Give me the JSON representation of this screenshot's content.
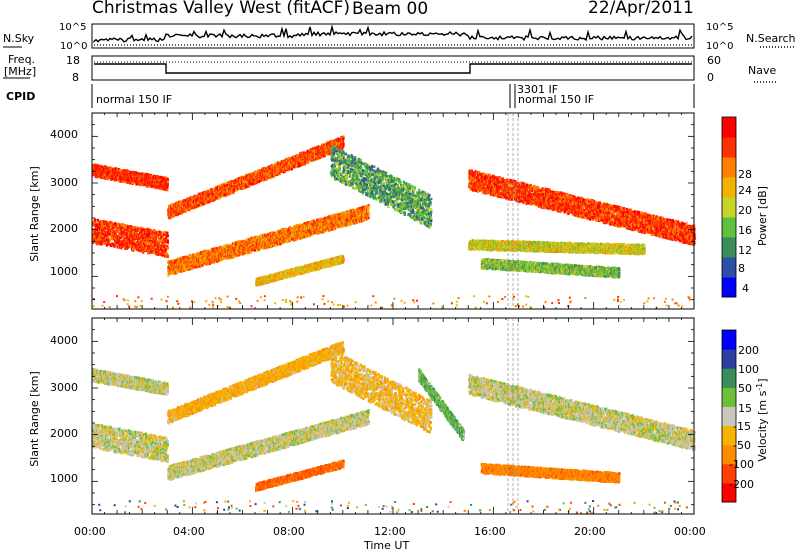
{
  "header": {
    "station": "Christmas Valley West (fitACF)",
    "beam": "Beam 00",
    "date": "22/Apr/2011"
  },
  "top_panels": {
    "nsky_label": "N.Sky",
    "nsearch_label": "N.Search",
    "noise_ticks": [
      "10^5",
      "10^0"
    ],
    "freq_label_1": "Freq.",
    "freq_label_2": "[MHz]",
    "freq_ticks": [
      "18",
      "8"
    ],
    "nave_label": "Nave",
    "nave_ticks": [
      "60",
      "0"
    ],
    "cpid_label": "CPID",
    "cpid_text_1": "normal 150 IF",
    "cpid_text_2": "3301 IF",
    "cpid_text_3": "normal 150 IF"
  },
  "power_panel": {
    "ylabel": "Slant Range [km]",
    "yticks": [
      "4000",
      "3000",
      "2000",
      "1000"
    ],
    "cbar_label": "Power [dB]",
    "cbar_ticks": [
      "28",
      "24",
      "20",
      "16",
      "12",
      "8",
      "4"
    ],
    "cbar_colors": [
      "#0000ff",
      "#2e4fa8",
      "#3c8c5a",
      "#5fbf3f",
      "#c8d22a",
      "#f0b400",
      "#ff8000",
      "#ff3000",
      "#ff0000"
    ]
  },
  "velocity_panel": {
    "ylabel": "Slant Range [km]",
    "yticks": [
      "4000",
      "3000",
      "2000",
      "1000"
    ],
    "cbar_label": "Velocity [m s",
    "cbar_label_exp": "-1",
    "cbar_label_end": "]",
    "cbar_ticks": [
      "200",
      "100",
      "50",
      "15",
      "-15",
      "-50",
      "-100",
      "-200"
    ],
    "cbar_colors": [
      "#ff0000",
      "#ff4000",
      "#ff8c00",
      "#f5b400",
      "#c8c8c0",
      "#6cbf3a",
      "#3a8c5a",
      "#2a3fa0",
      "#0000ff"
    ]
  },
  "xaxis": {
    "label": "Time UT",
    "ticks": [
      "00:00",
      "04:00",
      "08:00",
      "12:00",
      "16:00",
      "20:00",
      "00:00"
    ]
  },
  "chart_data": [
    {
      "type": "heatmap",
      "name": "Power",
      "title": "Christmas Valley West (fitACF)",
      "xlabel": "Time UT",
      "ylabel": "Slant Range [km]",
      "xlim": [
        0,
        24
      ],
      "ylim": [
        300,
        4500
      ],
      "colorbar": "Power [dB]",
      "clim": [
        0,
        30
      ],
      "bands": [
        {
          "t_start": 0.0,
          "t_end": 3.0,
          "r_start": 3300,
          "r_end": 3000,
          "width": 260,
          "level": 26
        },
        {
          "t_start": 0.0,
          "t_end": 3.0,
          "r_start": 2000,
          "r_end": 1700,
          "width": 520,
          "level": 25
        },
        {
          "t_start": 3.0,
          "t_end": 10.0,
          "r_start": 2400,
          "r_end": 3900,
          "width": 260,
          "level": 24
        },
        {
          "t_start": 3.0,
          "t_end": 11.0,
          "r_start": 1200,
          "r_end": 2400,
          "width": 300,
          "level": 22
        },
        {
          "t_start": 6.5,
          "t_end": 10.0,
          "r_start": 900,
          "r_end": 1400,
          "width": 150,
          "level": 18
        },
        {
          "t_start": 9.5,
          "t_end": 13.5,
          "r_start": 3500,
          "r_end": 2400,
          "width": 700,
          "level": 10
        },
        {
          "t_start": 15.0,
          "t_end": 24.0,
          "r_start": 3100,
          "r_end": 1900,
          "width": 420,
          "level": 25
        },
        {
          "t_start": 15.0,
          "t_end": 22.0,
          "r_start": 1700,
          "r_end": 1600,
          "width": 200,
          "level": 16
        },
        {
          "t_start": 15.5,
          "t_end": 21.0,
          "r_start": 1300,
          "r_end": 1100,
          "width": 200,
          "level": 12
        }
      ]
    },
    {
      "type": "heatmap",
      "name": "Velocity",
      "xlabel": "Time UT",
      "ylabel": "Slant Range [km]",
      "xlim": [
        0,
        24
      ],
      "ylim": [
        300,
        4500
      ],
      "colorbar": "Velocity [m s-1]",
      "clim": [
        -200,
        200
      ],
      "bands": [
        {
          "t_start": 0.0,
          "t_end": 3.0,
          "r_start": 3300,
          "r_end": 3000,
          "width": 260,
          "level": 0
        },
        {
          "t_start": 0.0,
          "t_end": 3.0,
          "r_start": 2000,
          "r_end": 1700,
          "width": 520,
          "level": 0
        },
        {
          "t_start": 3.0,
          "t_end": 10.0,
          "r_start": 2400,
          "r_end": 3900,
          "width": 260,
          "level": -40
        },
        {
          "t_start": 3.0,
          "t_end": 11.0,
          "r_start": 1200,
          "r_end": 2400,
          "width": 300,
          "level": 0
        },
        {
          "t_start": 6.5,
          "t_end": 10.0,
          "r_start": 900,
          "r_end": 1400,
          "width": 150,
          "level": -100
        },
        {
          "t_start": 9.5,
          "t_end": 13.5,
          "r_start": 3500,
          "r_end": 2400,
          "width": 700,
          "level": -30
        },
        {
          "t_start": 13.0,
          "t_end": 14.8,
          "r_start": 3300,
          "r_end": 2000,
          "width": 250,
          "level": 40
        },
        {
          "t_start": 15.0,
          "t_end": 24.0,
          "r_start": 3100,
          "r_end": 1900,
          "width": 420,
          "level": 0
        },
        {
          "t_start": 15.5,
          "t_end": 21.0,
          "r_start": 1300,
          "r_end": 1100,
          "width": 200,
          "level": -80
        }
      ]
    }
  ]
}
